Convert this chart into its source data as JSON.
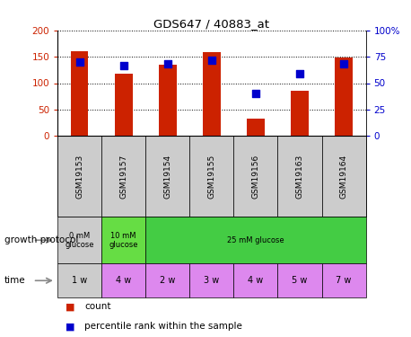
{
  "title": "GDS647 / 40883_at",
  "samples": [
    "GSM19153",
    "GSM19157",
    "GSM19154",
    "GSM19155",
    "GSM19156",
    "GSM19163",
    "GSM19164"
  ],
  "counts": [
    160,
    118,
    135,
    158,
    33,
    85,
    148
  ],
  "percentile": [
    70,
    67,
    68,
    72,
    40,
    59,
    68
  ],
  "ylim_left": [
    0,
    200
  ],
  "ylim_right": [
    0,
    100
  ],
  "yticks_left": [
    0,
    50,
    100,
    150,
    200
  ],
  "yticks_right": [
    0,
    25,
    50,
    75,
    100
  ],
  "bar_color": "#cc2200",
  "dot_color": "#0000cc",
  "sample_box_color": "#cccccc",
  "gp_colors": [
    "#cccccc",
    "#66dd44",
    "#44cc44"
  ],
  "gp_labels": [
    "0 mM\nglucose",
    "10 mM\nglucose",
    "25 mM glucose"
  ],
  "gp_starts": [
    0,
    1,
    2
  ],
  "gp_spans": [
    1,
    1,
    5
  ],
  "time_labels": [
    "1 w",
    "4 w",
    "2 w",
    "3 w",
    "4 w",
    "5 w",
    "7 w"
  ],
  "time_colors": [
    "#cccccc",
    "#dd88ee",
    "#dd88ee",
    "#dd88ee",
    "#dd88ee",
    "#dd88ee",
    "#dd88ee"
  ],
  "background_color": "#ffffff",
  "axis_color_left": "#cc2200",
  "axis_color_right": "#0000cc",
  "legend_count_label": "count",
  "legend_pct_label": "percentile rank within the sample",
  "growth_protocol_label": "growth protocol",
  "time_row_label": "time"
}
